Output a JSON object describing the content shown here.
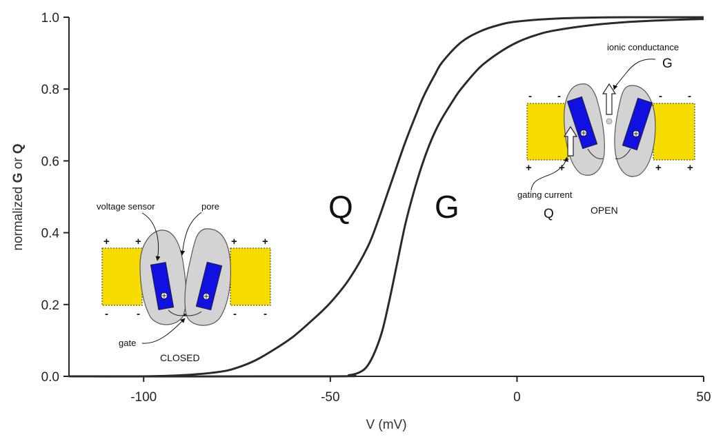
{
  "chart_data": {
    "type": "line",
    "title": "",
    "xlabel": "V (mV)",
    "ylabel_prefix": "normalized ",
    "ylabel_g": "G",
    "ylabel_mid": " or ",
    "ylabel_q": "Q",
    "xlim": [
      -120,
      50
    ],
    "ylim": [
      0,
      1
    ],
    "xticks": [
      -100,
      -50,
      0,
      50
    ],
    "yticks": [
      "0.0",
      "0.2",
      "0.4",
      "0.6",
      "0.8",
      "1.0"
    ],
    "series": [
      {
        "name": "Q",
        "x": [
          -120,
          -100,
          -90,
          -80,
          -75,
          -70,
          -65,
          -60,
          -55,
          -50,
          -45,
          -40,
          -37,
          -35,
          -33,
          -30,
          -27,
          -25,
          -22,
          -20,
          -15,
          -10,
          -5,
          0,
          10,
          20,
          30,
          40,
          50
        ],
        "y": [
          0,
          0,
          0.003,
          0.012,
          0.024,
          0.045,
          0.075,
          0.11,
          0.155,
          0.205,
          0.27,
          0.36,
          0.44,
          0.5,
          0.56,
          0.65,
          0.73,
          0.78,
          0.84,
          0.875,
          0.93,
          0.96,
          0.978,
          0.988,
          0.996,
          0.999,
          1,
          1,
          1
        ]
      },
      {
        "name": "G",
        "x": [
          -120,
          -50,
          -45,
          -42,
          -40,
          -38,
          -36,
          -34,
          -32,
          -30,
          -28,
          -26,
          -24,
          -22,
          -20,
          -17,
          -15,
          -10,
          -5,
          0,
          5,
          10,
          20,
          30,
          40,
          50
        ],
        "y": [
          0,
          0,
          0.003,
          0.012,
          0.03,
          0.07,
          0.13,
          0.22,
          0.32,
          0.42,
          0.5,
          0.57,
          0.63,
          0.68,
          0.72,
          0.77,
          0.8,
          0.86,
          0.9,
          0.93,
          0.95,
          0.963,
          0.978,
          0.987,
          0.992,
          0.995
        ]
      }
    ],
    "curve_labels": {
      "q": "Q",
      "g": "G"
    },
    "insets": {
      "closed": {
        "state_label": "CLOSED",
        "voltage_sensor_label": "voltage sensor",
        "pore_label": "pore",
        "gate_label": "gate",
        "top_signs": [
          "+",
          "+",
          "+",
          "+"
        ],
        "bottom_signs": [
          "-",
          "-",
          "-",
          "-"
        ]
      },
      "open": {
        "state_label": "OPEN",
        "ionic_label": "ionic conductance",
        "ionic_symbol": "G",
        "gating_label": "gating current",
        "gating_symbol": "Q",
        "top_signs": [
          "-",
          "-",
          "-",
          "-"
        ],
        "bottom_signs": [
          "+",
          "+",
          "+",
          "+"
        ]
      }
    },
    "colors": {
      "membrane": "#f7dc00",
      "protein": "#d3d3d3",
      "sensor": "#1010e0",
      "curve": "#2a2a2a"
    }
  }
}
